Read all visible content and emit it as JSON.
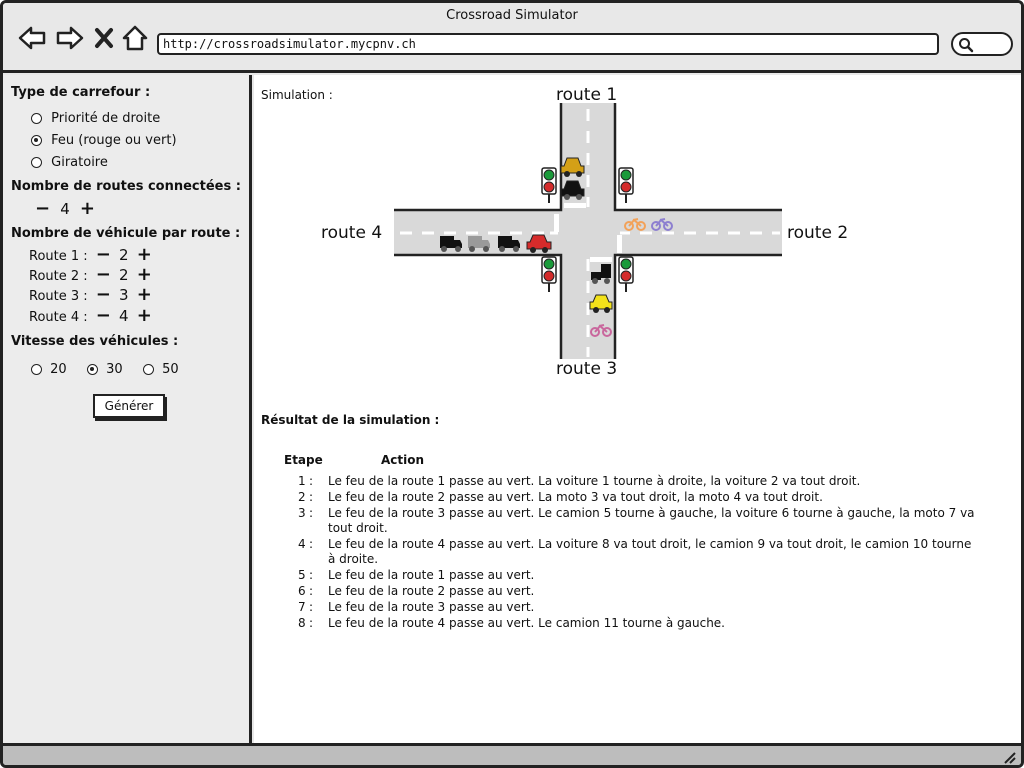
{
  "window": {
    "title": "Crossroad Simulator"
  },
  "browser": {
    "url": "http://crossroadsimulator.mycpnv.ch"
  },
  "sidebar": {
    "type_title": "Type de carrefour :",
    "type_options": [
      {
        "label": "Priorité de droite",
        "selected": false
      },
      {
        "label": "Feu (rouge ou vert)",
        "selected": true
      },
      {
        "label": "Giratoire",
        "selected": false
      }
    ],
    "routes_title": "Nombre de routes connectées :",
    "routes_minus": "−",
    "routes_value": "4",
    "routes_plus": "+",
    "vehicles_title": "Nombre de véhicule par route :",
    "vehicle_rows": [
      {
        "label": "Route 1 :",
        "minus": "−",
        "value": "2",
        "plus": "+"
      },
      {
        "label": "Route 2 :",
        "minus": "−",
        "value": "2",
        "plus": "+"
      },
      {
        "label": "Route 3 :",
        "minus": "−",
        "value": "3",
        "plus": "+"
      },
      {
        "label": "Route 4 :",
        "minus": "−",
        "value": "4",
        "plus": "+"
      }
    ],
    "speed_title": "Vitesse des véhicules :",
    "speed_options": [
      {
        "label": "20",
        "selected": false
      },
      {
        "label": "30",
        "selected": true
      },
      {
        "label": "50",
        "selected": false
      }
    ],
    "generate_label": "Générer"
  },
  "simulation": {
    "label": "Simulation :",
    "routes": {
      "r1": "route 1",
      "r2": "route 2",
      "r3": "route 3",
      "r4": "route 4"
    },
    "colors": {
      "road": "#d9d9d9",
      "light_red": "#d42b2b",
      "light_green": "#1a9a3a",
      "car_orange": "#d4a017",
      "car_red": "#d62b2b",
      "car_yellow": "#f3e21a",
      "truck_black": "#111111",
      "truck_grey": "#9a9a9a",
      "moto_orange": "#f2a25a",
      "moto_purple": "#8d7fd0",
      "moto_pink": "#c9679d"
    }
  },
  "results": {
    "title": "Résultat de la simulation :",
    "col_step": "Etape",
    "col_action": "Action",
    "steps": [
      {
        "num": "1",
        "text": "Le feu de la route 1 passe au vert. La voiture 1 tourne à droite, la voiture 2 va tout droit."
      },
      {
        "num": "2",
        "text": "Le feu de la route 2 passe au vert. La moto 3 va tout droit, la moto 4 va tout droit."
      },
      {
        "num": "3",
        "text": "Le feu de la route 3 passe au vert. Le camion 5 tourne à gauche, la voiture 6 tourne à gauche, la moto 7 va tout droit."
      },
      {
        "num": "4",
        "text": "Le feu de la route 4 passe au vert. La voiture 8 va tout droit, le camion 9 va tout droit, le camion 10 tourne à droite."
      },
      {
        "num": "5",
        "text": "Le feu de la route 1 passe au vert."
      },
      {
        "num": "6",
        "text": "Le feu de la route 2 passe au vert."
      },
      {
        "num": "7",
        "text": "Le feu de la route 3 passe au vert."
      },
      {
        "num": "8",
        "text": "Le feu de la route 4 passe au vert. Le camion 11 tourne à gauche."
      }
    ]
  }
}
